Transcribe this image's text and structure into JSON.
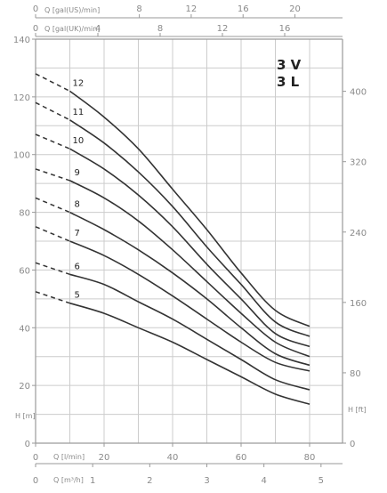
{
  "chart_data": {
    "type": "line",
    "model_lines": [
      "3 V",
      "3 L"
    ],
    "axes": {
      "bottom_lmin": {
        "label": "Q [l/min]",
        "ticks": [
          0,
          20,
          40,
          60,
          80
        ],
        "range": [
          0,
          80
        ]
      },
      "bottom_m3h": {
        "label": "Q [m³/h]",
        "ticks": [
          0,
          1,
          2,
          3,
          4,
          5
        ],
        "range": [
          0,
          5
        ]
      },
      "top_galus": {
        "label": "Q [gal(US)/min]",
        "ticks": [
          0,
          8,
          12,
          16,
          20
        ],
        "range": [
          0,
          21.13
        ]
      },
      "top_galuk": {
        "label": "Q [gal(UK)/min]",
        "ticks": [
          0,
          4,
          8,
          12,
          16
        ],
        "range": [
          0,
          17.6
        ]
      },
      "left_m": {
        "label": "H [m]",
        "ticks": [
          0,
          20,
          40,
          60,
          80,
          100,
          120,
          140
        ],
        "range": [
          0,
          140
        ]
      },
      "right_ft": {
        "label": "H [ft]",
        "ticks": [
          0,
          80,
          160,
          240,
          320,
          400
        ],
        "range": [
          0,
          459.3
        ]
      }
    },
    "grid": true,
    "colors": {
      "curve": "#333333",
      "grid": "#cccccc",
      "axis": "#9a9a9a",
      "text": "#8a8a8a"
    },
    "x_unit": "l/min",
    "y_unit": "m",
    "series": [
      {
        "name": "5",
        "dashed": [
          [
            0,
            52.5
          ],
          [
            10,
            48.5
          ]
        ],
        "solid": [
          [
            10,
            48.5
          ],
          [
            20,
            45
          ],
          [
            30,
            40
          ],
          [
            40,
            35
          ],
          [
            50,
            29
          ],
          [
            60,
            23
          ],
          [
            70,
            17
          ],
          [
            80,
            13.5
          ]
        ]
      },
      {
        "name": "6",
        "dashed": [
          [
            0,
            62.5
          ],
          [
            10,
            58.5
          ]
        ],
        "solid": [
          [
            10,
            58.5
          ],
          [
            20,
            55
          ],
          [
            30,
            49
          ],
          [
            40,
            43
          ],
          [
            50,
            36
          ],
          [
            60,
            29
          ],
          [
            70,
            22
          ],
          [
            80,
            18.5
          ]
        ]
      },
      {
        "name": "7",
        "dashed": [
          [
            0,
            75
          ],
          [
            10,
            70
          ]
        ],
        "solid": [
          [
            10,
            70
          ],
          [
            20,
            65
          ],
          [
            30,
            58.5
          ],
          [
            40,
            51
          ],
          [
            50,
            43
          ],
          [
            60,
            35
          ],
          [
            70,
            28
          ],
          [
            80,
            25
          ]
        ]
      },
      {
        "name": "8",
        "dashed": [
          [
            0,
            85
          ],
          [
            10,
            80
          ]
        ],
        "solid": [
          [
            10,
            80
          ],
          [
            20,
            74
          ],
          [
            30,
            67
          ],
          [
            40,
            59
          ],
          [
            50,
            50
          ],
          [
            60,
            40
          ],
          [
            70,
            31
          ],
          [
            80,
            27
          ]
        ]
      },
      {
        "name": "9",
        "dashed": [
          [
            0,
            95
          ],
          [
            10,
            91
          ]
        ],
        "solid": [
          [
            10,
            91
          ],
          [
            20,
            85
          ],
          [
            30,
            77
          ],
          [
            40,
            67
          ],
          [
            50,
            56
          ],
          [
            60,
            45
          ],
          [
            70,
            35
          ],
          [
            80,
            30
          ]
        ]
      },
      {
        "name": "10",
        "dashed": [
          [
            0,
            107
          ],
          [
            10,
            102
          ]
        ],
        "solid": [
          [
            10,
            102
          ],
          [
            20,
            95
          ],
          [
            30,
            86
          ],
          [
            40,
            75
          ],
          [
            50,
            62
          ],
          [
            60,
            50
          ],
          [
            70,
            38
          ],
          [
            80,
            33.5
          ]
        ]
      },
      {
        "name": "11",
        "dashed": [
          [
            0,
            118
          ],
          [
            10,
            112
          ]
        ],
        "solid": [
          [
            10,
            112
          ],
          [
            20,
            104
          ],
          [
            30,
            94
          ],
          [
            40,
            82
          ],
          [
            50,
            68
          ],
          [
            60,
            55
          ],
          [
            70,
            42
          ],
          [
            80,
            37
          ]
        ]
      },
      {
        "name": "12",
        "dashed": [
          [
            0,
            128
          ],
          [
            10,
            122
          ]
        ],
        "solid": [
          [
            10,
            122
          ],
          [
            20,
            113
          ],
          [
            30,
            102
          ],
          [
            40,
            88
          ],
          [
            50,
            74
          ],
          [
            60,
            59
          ],
          [
            70,
            46
          ],
          [
            80,
            40.5
          ]
        ]
      }
    ]
  }
}
